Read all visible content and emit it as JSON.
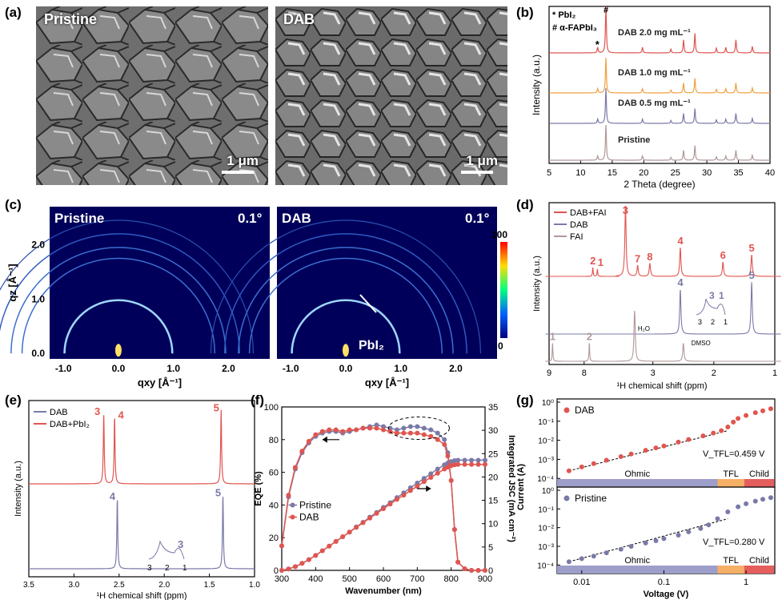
{
  "panels": {
    "a": {
      "label": "(a)",
      "images": [
        {
          "title": "Pristine",
          "scale": "1 μm"
        },
        {
          "title": "DAB",
          "scale": "1 μm"
        }
      ]
    },
    "b": {
      "label": "(b)"
    },
    "c": {
      "label": "(c)",
      "maps": [
        {
          "title": "Pristine",
          "angle": "0.1°"
        },
        {
          "title": "DAB",
          "angle": "0.1°",
          "annotation": "PbI₂"
        }
      ],
      "xlabel": "qxy [Å⁻¹]",
      "ylabel": "qz [Å⁻¹]",
      "xticks": [
        "-1.0",
        "0.0",
        "1.0",
        "2.0"
      ],
      "yticks": [
        "0.0",
        "1.0",
        "2.0"
      ],
      "colorbar": {
        "max": "100",
        "min": "0"
      }
    },
    "d": {
      "label": "(d)"
    },
    "e": {
      "label": "(e)"
    },
    "f": {
      "label": "(f)"
    },
    "g": {
      "label": "(g)"
    }
  },
  "chart_data": [
    {
      "id": "b",
      "type": "line",
      "xlabel": "2 Theta (degree)",
      "ylabel": "Intensity (a.u.)",
      "xlim": [
        5,
        40
      ],
      "xticks": [
        "5",
        "10",
        "15",
        "20",
        "25",
        "30",
        "35",
        "40"
      ],
      "legend": [
        "* PbI₂",
        "# α-FAPbI₃"
      ],
      "marks": {
        "star": "*",
        "hash": "#"
      },
      "peaks": [
        12.7,
        14.0,
        19.8,
        24.3,
        26.3,
        28.1,
        31.5,
        33.0,
        34.6,
        37.2
      ],
      "peak_heights": [
        0.12,
        1.0,
        0.12,
        0.08,
        0.28,
        0.42,
        0.1,
        0.12,
        0.28,
        0.14
      ],
      "series": [
        {
          "name": "DAB 2.0 mg mL⁻¹",
          "color": "#e0554f"
        },
        {
          "name": "DAB 1.0 mg mL⁻¹",
          "color": "#f0a040"
        },
        {
          "name": "DAB 0.5 mg mL⁻¹",
          "color": "#7a7aa8"
        },
        {
          "name": "Pristine",
          "color": "#b09898"
        }
      ]
    },
    {
      "id": "d",
      "type": "line",
      "xlabel": "¹H chemical shift (ppm)",
      "ylabel": "Intensity (a.u.)",
      "xticks": [
        "9",
        "8",
        "3",
        "2",
        "1"
      ],
      "series": [
        {
          "name": "DAB+FAI",
          "color": "#e0554f",
          "peaks": [
            {
              "ppm": 7.75,
              "label": "2"
            },
            {
              "ppm": 7.62,
              "label": "1"
            },
            {
              "ppm": 3.45,
              "label": "3"
            },
            {
              "ppm": 3.25,
              "label": "7"
            },
            {
              "ppm": 3.05,
              "label": "8"
            },
            {
              "ppm": 2.55,
              "label": "4"
            },
            {
              "ppm": 1.85,
              "label": "6"
            },
            {
              "ppm": 1.38,
              "label": "5"
            }
          ]
        },
        {
          "name": "DAB",
          "color": "#7a7aa8",
          "peaks": [
            {
              "ppm": 2.55,
              "label": "4"
            },
            {
              "ppm": 1.38,
              "label": "5"
            }
          ],
          "inset": {
            "labels": [
              "3",
              "1"
            ],
            "ticks": [
              "3",
              "2",
              "1"
            ]
          }
        },
        {
          "name": "FAI",
          "color": "#b09898",
          "peaks": [
            {
              "ppm": 8.9,
              "label": "1"
            },
            {
              "ppm": 7.85,
              "label": "2"
            }
          ]
        }
      ],
      "annotations": [
        "H₂O",
        "DMSO"
      ]
    },
    {
      "id": "e",
      "type": "line",
      "xlabel": "¹H chemical shift (ppm)",
      "ylabel": "Intensity (a.u.)",
      "xlim": [
        3.5,
        1.0
      ],
      "xticks": [
        "3.5",
        "3.0",
        "2.5",
        "2.0",
        "1.5",
        "1.0"
      ],
      "series": [
        {
          "name": "DAB",
          "color": "#7a7aa8",
          "peaks": [
            {
              "ppm": 2.52,
              "label": "4"
            },
            {
              "ppm": 1.35,
              "label": "5"
            }
          ],
          "inset": {
            "labels": [
              "3"
            ],
            "ticks": [
              "3",
              "2",
              "1"
            ]
          }
        },
        {
          "name": "DAB+PbI₂",
          "color": "#e0554f",
          "peaks": [
            {
              "ppm": 2.67,
              "label": "3"
            },
            {
              "ppm": 2.55,
              "label": "4"
            },
            {
              "ppm": 1.37,
              "label": "5"
            }
          ]
        }
      ]
    },
    {
      "id": "f",
      "type": "line",
      "xlabel": "Wavenumber (nm)",
      "ylabel": "EQE (%)",
      "y2label": "Integrated JSC (mA cm⁻²)",
      "xlim": [
        300,
        900
      ],
      "ylim": [
        0,
        100
      ],
      "y2lim": [
        0,
        35
      ],
      "xticks": [
        "300",
        "400",
        "500",
        "600",
        "700",
        "800",
        "900"
      ],
      "yticks": [
        "0",
        "20",
        "40",
        "60",
        "80",
        "100"
      ],
      "y2ticks": [
        "0",
        "5",
        "10",
        "15",
        "20",
        "25",
        "30",
        "35"
      ],
      "x": [
        300,
        320,
        340,
        360,
        380,
        400,
        420,
        440,
        460,
        480,
        500,
        520,
        540,
        560,
        580,
        600,
        620,
        640,
        660,
        680,
        700,
        720,
        740,
        760,
        780,
        790,
        800,
        810,
        820,
        840,
        860,
        880,
        900
      ],
      "series": [
        {
          "name": "Pristine",
          "color": "#7a7aa8",
          "eqe": [
            15,
            45,
            62,
            72,
            78,
            82,
            84,
            85,
            85,
            84,
            85,
            86,
            87,
            88,
            89,
            88,
            87,
            86,
            87,
            88,
            88,
            87,
            86,
            84,
            80,
            72,
            55,
            25,
            5,
            1,
            0,
            0,
            0
          ],
          "jsc": [
            0,
            0.3,
            0.8,
            1.5,
            2.3,
            3.2,
            4.2,
            5.2,
            6.2,
            7.2,
            8.2,
            9.3,
            10.3,
            11.4,
            12.4,
            13.5,
            14.5,
            15.6,
            16.6,
            17.7,
            18.7,
            19.7,
            20.7,
            21.7,
            22.6,
            23.0,
            23.3,
            23.5,
            23.6,
            23.6,
            23.6,
            23.6,
            23.6
          ]
        },
        {
          "name": "DAB",
          "color": "#e0554f",
          "eqe": [
            15,
            46,
            63,
            73,
            79,
            83,
            85,
            86,
            86,
            85,
            86,
            86,
            87,
            87,
            87,
            86,
            85,
            84,
            84,
            84,
            84,
            83,
            82,
            80,
            77,
            70,
            55,
            25,
            5,
            1,
            0,
            0,
            0
          ],
          "jsc": [
            0,
            0.3,
            0.8,
            1.5,
            2.3,
            3.2,
            4.2,
            5.2,
            6.2,
            7.2,
            8.2,
            9.2,
            10.2,
            11.2,
            12.2,
            13.2,
            14.2,
            15.2,
            16.1,
            17.1,
            18.0,
            19.0,
            19.9,
            20.8,
            21.7,
            22.1,
            22.4,
            22.6,
            22.7,
            22.7,
            22.7,
            22.7,
            22.7
          ]
        }
      ]
    },
    {
      "id": "g",
      "type": "scatter",
      "xlabel": "Voltage (V)",
      "ylabel": "Current (A)",
      "xscale": "log",
      "yscale": "log",
      "xticks": [
        "0.01",
        "0.1",
        "1"
      ],
      "yticks": [
        "10⁰",
        "10⁻¹",
        "10⁻²",
        "10⁻³",
        "10⁻⁴"
      ],
      "regions": [
        "Ohmic",
        "TFL",
        "Child"
      ],
      "subplots": [
        {
          "name": "DAB",
          "color": "#e0554f",
          "vtfl": "V_TFL=0.459 V",
          "x": [
            0.007,
            0.01,
            0.014,
            0.02,
            0.03,
            0.04,
            0.06,
            0.08,
            0.1,
            0.15,
            0.2,
            0.3,
            0.4,
            0.5,
            0.6,
            0.7,
            0.8,
            1.0,
            1.3,
            1.6,
            2.0
          ],
          "y": [
            0.00025,
            0.0004,
            0.0006,
            0.0009,
            0.0014,
            0.0019,
            0.003,
            0.004,
            0.005,
            0.008,
            0.011,
            0.017,
            0.024,
            0.032,
            0.05,
            0.09,
            0.14,
            0.2,
            0.28,
            0.35,
            0.45
          ]
        },
        {
          "name": "Pristine",
          "color": "#7a7aa8",
          "vtfl": "V_TFL=0.280 V",
          "x": [
            0.007,
            0.01,
            0.014,
            0.02,
            0.03,
            0.04,
            0.06,
            0.08,
            0.1,
            0.15,
            0.2,
            0.28,
            0.35,
            0.45,
            0.6,
            0.8,
            1.0,
            1.3,
            1.6,
            2.0
          ],
          "y": [
            0.00015,
            0.00022,
            0.0003,
            0.00045,
            0.0007,
            0.001,
            0.0015,
            0.002,
            0.0026,
            0.004,
            0.006,
            0.009,
            0.014,
            0.03,
            0.07,
            0.13,
            0.19,
            0.26,
            0.33,
            0.4
          ]
        }
      ]
    }
  ]
}
